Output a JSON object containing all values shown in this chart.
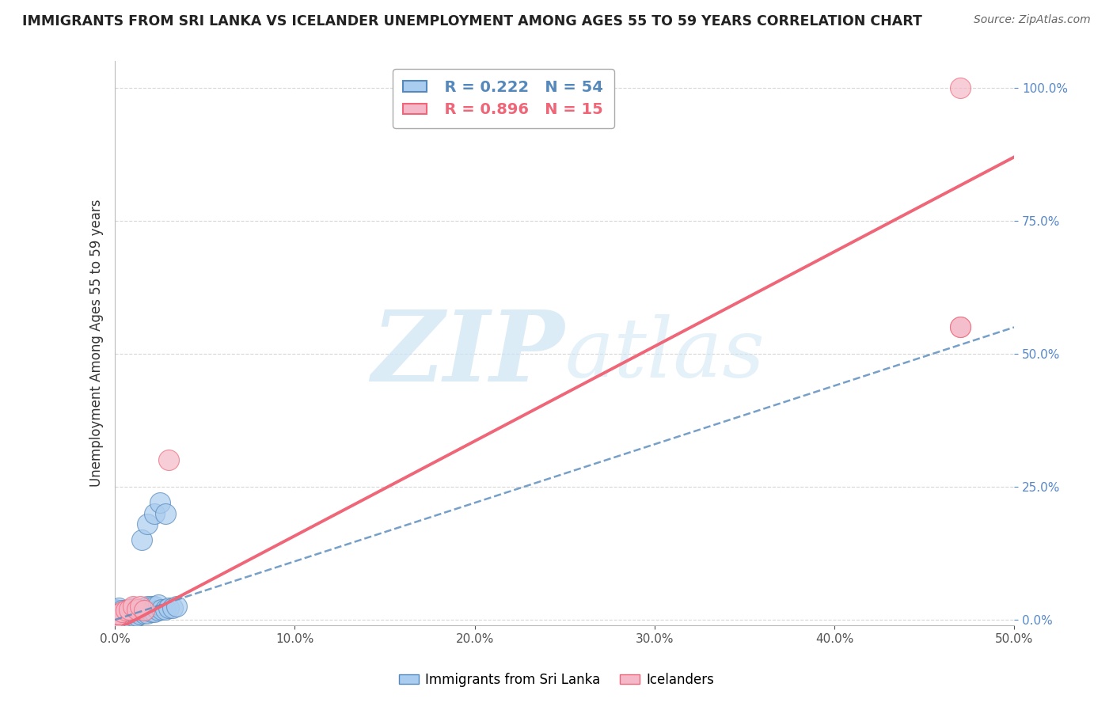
{
  "title": "IMMIGRANTS FROM SRI LANKA VS ICELANDER UNEMPLOYMENT AMONG AGES 55 TO 59 YEARS CORRELATION CHART",
  "source": "Source: ZipAtlas.com",
  "xlim": [
    0.0,
    0.5
  ],
  "ylim": [
    -0.01,
    1.05
  ],
  "ylabel": "Unemployment Among Ages 55 to 59 years",
  "legend_r1": "R = 0.222",
  "legend_n1": "N = 54",
  "legend_r2": "R = 0.896",
  "legend_n2": "N = 15",
  "color_blue": "#aaccee",
  "color_pink": "#f5b8c8",
  "color_blue_line": "#5588bb",
  "color_pink_line": "#ee6677",
  "color_ytick": "#5588cc",
  "watermark_color": "#cce5f5",
  "blue_scatter_x": [
    0.0,
    0.0,
    0.0,
    0.0,
    0.0,
    0.0,
    0.0,
    0.0,
    0.0,
    0.0,
    0.002,
    0.002,
    0.002,
    0.002,
    0.002,
    0.002,
    0.004,
    0.004,
    0.004,
    0.004,
    0.006,
    0.006,
    0.006,
    0.008,
    0.008,
    0.008,
    0.01,
    0.01,
    0.01,
    0.01,
    0.012,
    0.012,
    0.014,
    0.014,
    0.016,
    0.016,
    0.018,
    0.018,
    0.02,
    0.02,
    0.022,
    0.022,
    0.024,
    0.024,
    0.026,
    0.028,
    0.03,
    0.032,
    0.034,
    0.015,
    0.018,
    0.022,
    0.025,
    0.028
  ],
  "blue_scatter_y": [
    0.0,
    0.0,
    0.0,
    0.005,
    0.008,
    0.01,
    0.012,
    0.015,
    0.018,
    0.02,
    0.0,
    0.005,
    0.008,
    0.012,
    0.018,
    0.022,
    0.0,
    0.005,
    0.01,
    0.018,
    0.005,
    0.01,
    0.018,
    0.005,
    0.012,
    0.02,
    0.0,
    0.008,
    0.015,
    0.022,
    0.008,
    0.018,
    0.01,
    0.02,
    0.012,
    0.022,
    0.012,
    0.025,
    0.015,
    0.025,
    0.015,
    0.025,
    0.018,
    0.028,
    0.02,
    0.02,
    0.022,
    0.022,
    0.025,
    0.15,
    0.18,
    0.2,
    0.22,
    0.2
  ],
  "pink_scatter_x": [
    0.0,
    0.0,
    0.0,
    0.002,
    0.004,
    0.006,
    0.008,
    0.01,
    0.012,
    0.014,
    0.016,
    0.03,
    0.47,
    0.47,
    0.47
  ],
  "pink_scatter_y": [
    0.0,
    0.005,
    0.01,
    0.01,
    0.015,
    0.018,
    0.02,
    0.025,
    0.02,
    0.025,
    0.018,
    0.3,
    0.55,
    1.0,
    0.55
  ],
  "blue_line_x0": 0.0,
  "blue_line_y0": 0.0,
  "blue_line_x1": 0.5,
  "blue_line_y1": 0.55,
  "pink_line_x0": 0.0,
  "pink_line_y0": -0.02,
  "pink_line_x1": 0.5,
  "pink_line_y1": 0.87
}
